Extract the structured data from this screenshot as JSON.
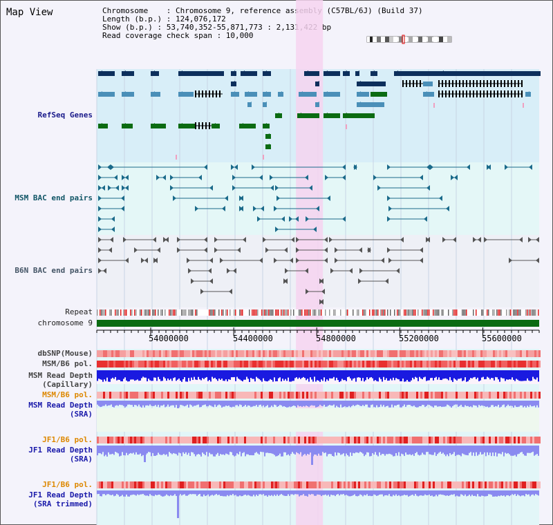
{
  "view": {
    "title": "Map View",
    "info": {
      "chromosome": "Chromosome    : Chromosome 9, reference assembly (C57BL/6J) (Build 37)",
      "length": "Length (b.p.) : 124,076,172",
      "show": "Show (b.p.) : 53,740,352-55,871,773 : 2,131,422 bp",
      "coverage": "Read coverage check span : 10,000"
    }
  },
  "region": {
    "start": 53740352,
    "end": 55871773
  },
  "tracks": {
    "refseq": "RefSeq Genes",
    "msm_bac": "MSM BAC end pairs",
    "b6n_bac": "B6N BAC end pairs",
    "repeat": "Repeat",
    "chromosome": "chromosome 9",
    "dbsnp": "dbSNP(Mouse)",
    "msm_b6_pol_1": "MSM/B6 pol.",
    "msm_read_depth_cap": "MSM Read Depth",
    "msm_read_depth_cap_sub": "(Capillary)",
    "msm_b6_pol_2": "MSM/B6 pol.",
    "msm_read_depth_sra": "MSM Read Depth",
    "msm_read_depth_sra_sub": "(SRA)",
    "jf1_b6_pol_1": "JF1/B6 pol.",
    "jf1_read_depth_sra": "JF1 Read Depth",
    "jf1_read_depth_sra_sub": "(SRA)",
    "jf1_b6_pol_2": "JF1/B6 pol.",
    "jf1_read_depth_trim": "JF1 Read Depth",
    "jf1_read_depth_trim_sub": "(SRA trimmed)"
  },
  "axis": {
    "ticks": [
      {
        "label": "54000000",
        "value": 54000000
      },
      {
        "label": "54400000",
        "value": 54400000
      },
      {
        "label": "54800000",
        "value": 54800000
      },
      {
        "label": "55200000",
        "value": 55200000
      },
      {
        "label": "55600000",
        "value": 55600000
      }
    ]
  },
  "highlight": {
    "start": 54700000,
    "end": 54830000
  },
  "colors": {
    "highlight": "#f6d4f0",
    "gene_navy": "#0d2f5c",
    "gene_steel": "#4a8fb8",
    "gene_green": "#0b6b12",
    "gene_pink": "#f0a0c0",
    "msm_bac": "#1a6a8a",
    "b6n_bac": "#555555",
    "chromosome": "#0b6b12",
    "depth_blue": "#1a1ae0",
    "depth_light": "#8a8af0"
  }
}
